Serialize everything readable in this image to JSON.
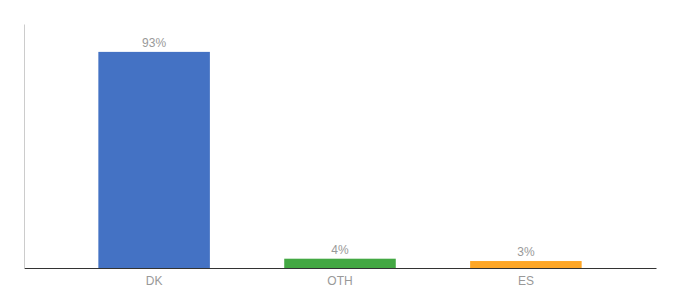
{
  "chart_data": {
    "type": "bar",
    "categories": [
      "DK",
      "OTH",
      "ES"
    ],
    "values": [
      93,
      4,
      3
    ],
    "value_labels": [
      "93%",
      "4%",
      "3%"
    ],
    "colors": [
      "#4472c4",
      "#43a843",
      "#ffa726"
    ],
    "ylim": [
      0,
      105
    ],
    "data_labels": true,
    "tick_labels": "x",
    "grid": false
  }
}
